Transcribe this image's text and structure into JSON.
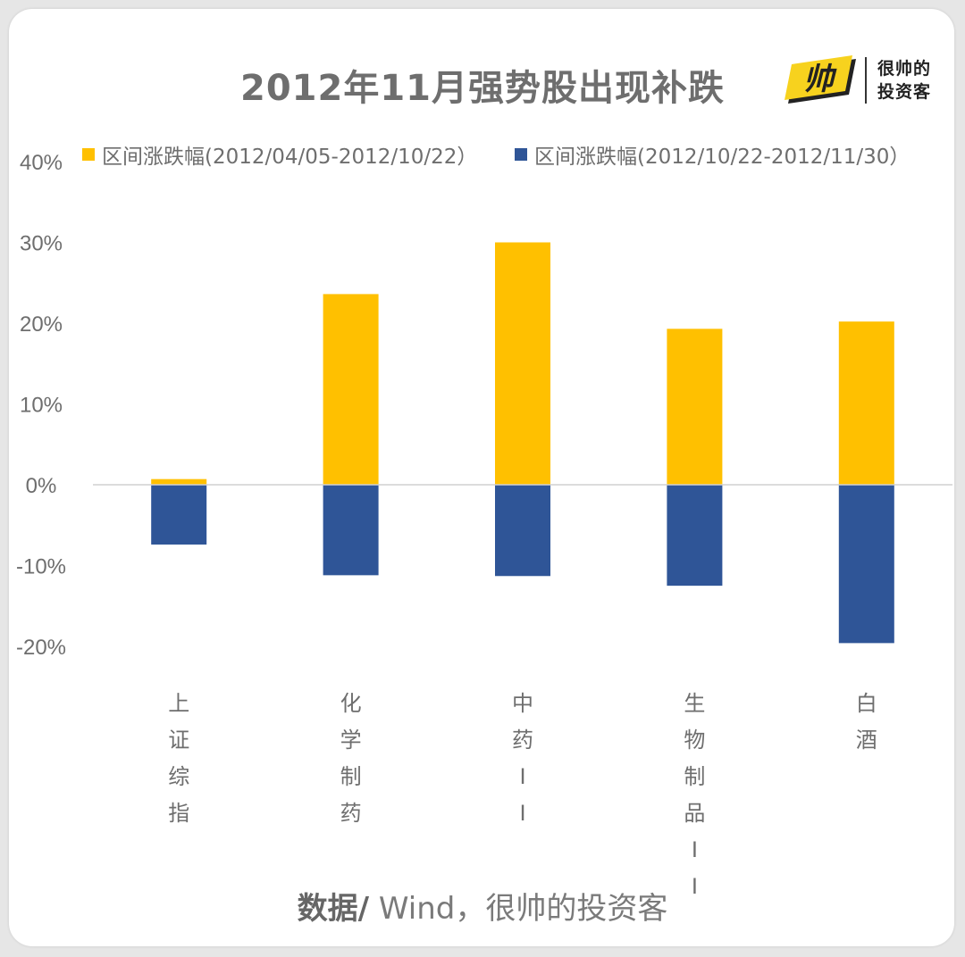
{
  "chart_data": {
    "type": "bar",
    "title": "2012年11月强势股出现补跌",
    "categories": [
      "上证综指",
      "化学制药",
      "中药II",
      "生物制品II",
      "白酒"
    ],
    "series": [
      {
        "name": "区间涨跌幅(2012/04/05-2012/10/22）",
        "color": "#FFC000",
        "values": [
          0.7,
          23.6,
          30.0,
          19.3,
          20.2
        ]
      },
      {
        "name": "区间涨跌幅(2012/10/22-2012/11/30）",
        "color": "#2F5597",
        "values": [
          -7.4,
          -11.2,
          -11.3,
          -12.5,
          -19.6
        ]
      }
    ],
    "ylim": [
      -20,
      40
    ],
    "yticks": [
      "-20%",
      "-10%",
      "0%",
      "10%",
      "20%",
      "30%",
      "40%"
    ],
    "ytick_values": [
      -20,
      -10,
      0,
      10,
      20,
      30,
      40
    ],
    "stacked": true,
    "grid": false,
    "legend_position": "top"
  },
  "logo": {
    "mark_text": "帅",
    "line1": "很帅的",
    "line2": "投资客"
  },
  "source": {
    "label": "数据/",
    "text": " Wind，很帅的投资客"
  }
}
